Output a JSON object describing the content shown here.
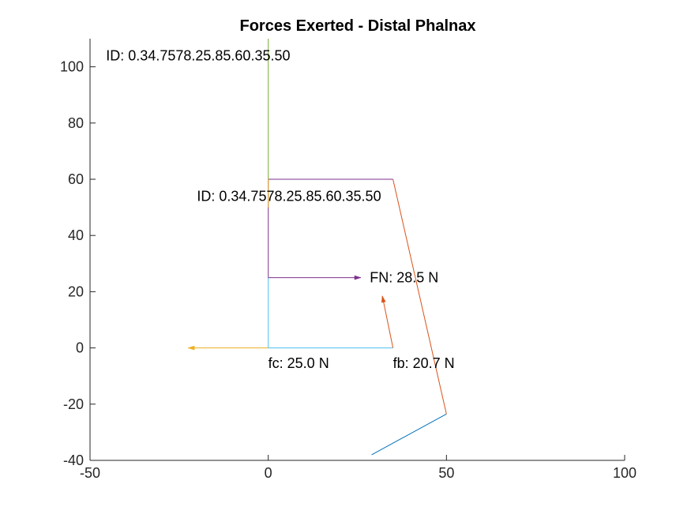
{
  "chart_data": {
    "type": "line",
    "title": "Forces Exerted - Distal Phalnax",
    "xlabel": "",
    "ylabel": "",
    "xlim": [
      -50,
      100
    ],
    "ylim": [
      -40,
      110
    ],
    "x_ticks": [
      -50,
      0,
      50,
      100
    ],
    "y_ticks": [
      -40,
      -20,
      0,
      20,
      40,
      60,
      80,
      100
    ],
    "x_tick_labels": [
      "-50",
      "0",
      "50",
      "100"
    ],
    "y_tick_labels": [
      "-40",
      "-20",
      "0",
      "20",
      "40",
      "60",
      "80",
      "100"
    ],
    "grid": false,
    "legend": "none",
    "series": [
      {
        "color": "#0072BD",
        "kind": "line",
        "x": [
          29,
          50
        ],
        "y": [
          -38,
          -23.5
        ]
      },
      {
        "color": "#D95319",
        "kind": "line",
        "x": [
          50,
          35
        ],
        "y": [
          -23.5,
          60
        ]
      },
      {
        "color": "#7E2F8E",
        "kind": "line",
        "x": [
          0,
          35
        ],
        "y": [
          60,
          60
        ]
      },
      {
        "color": "#7E2F8E",
        "kind": "line",
        "x": [
          0,
          0
        ],
        "y": [
          25,
          60
        ]
      },
      {
        "color": "#4DBEEE",
        "kind": "line",
        "x": [
          0,
          0
        ],
        "y": [
          0,
          25
        ]
      },
      {
        "color": "#4DBEEE",
        "kind": "line",
        "x": [
          0,
          35
        ],
        "y": [
          0,
          0
        ]
      },
      {
        "color": "#77AC30",
        "kind": "line",
        "x": [
          0,
          0
        ],
        "y": [
          60,
          110
        ]
      },
      {
        "color": "#EDB120",
        "kind": "line",
        "x": [
          0,
          0
        ],
        "y": [
          50,
          60
        ]
      },
      {
        "color": "#EDB120",
        "kind": "arrow",
        "x": [
          0,
          -22.5
        ],
        "y": [
          0,
          0
        ]
      },
      {
        "color": "#7E2F8E",
        "kind": "arrow",
        "x": [
          0,
          26
        ],
        "y": [
          25,
          25
        ]
      },
      {
        "color": "#D95319",
        "kind": "arrow",
        "x": [
          35,
          32
        ],
        "y": [
          0,
          18.5
        ]
      }
    ],
    "annotations": [
      {
        "text": "ID: 0.34.7578.25.85.60.35.50",
        "x": -45.5,
        "y": 104
      },
      {
        "text": "ID: 0.34.7578.25.85.60.35.50",
        "x": -20,
        "y": 54
      },
      {
        "text": "FN: 28.5 N",
        "x": 28.5,
        "y": 25
      },
      {
        "text": "fc: 25.0 N",
        "x": 0,
        "y": -5.5
      },
      {
        "text": "fb: 20.7 N",
        "x": 35,
        "y": -5.5
      }
    ]
  }
}
